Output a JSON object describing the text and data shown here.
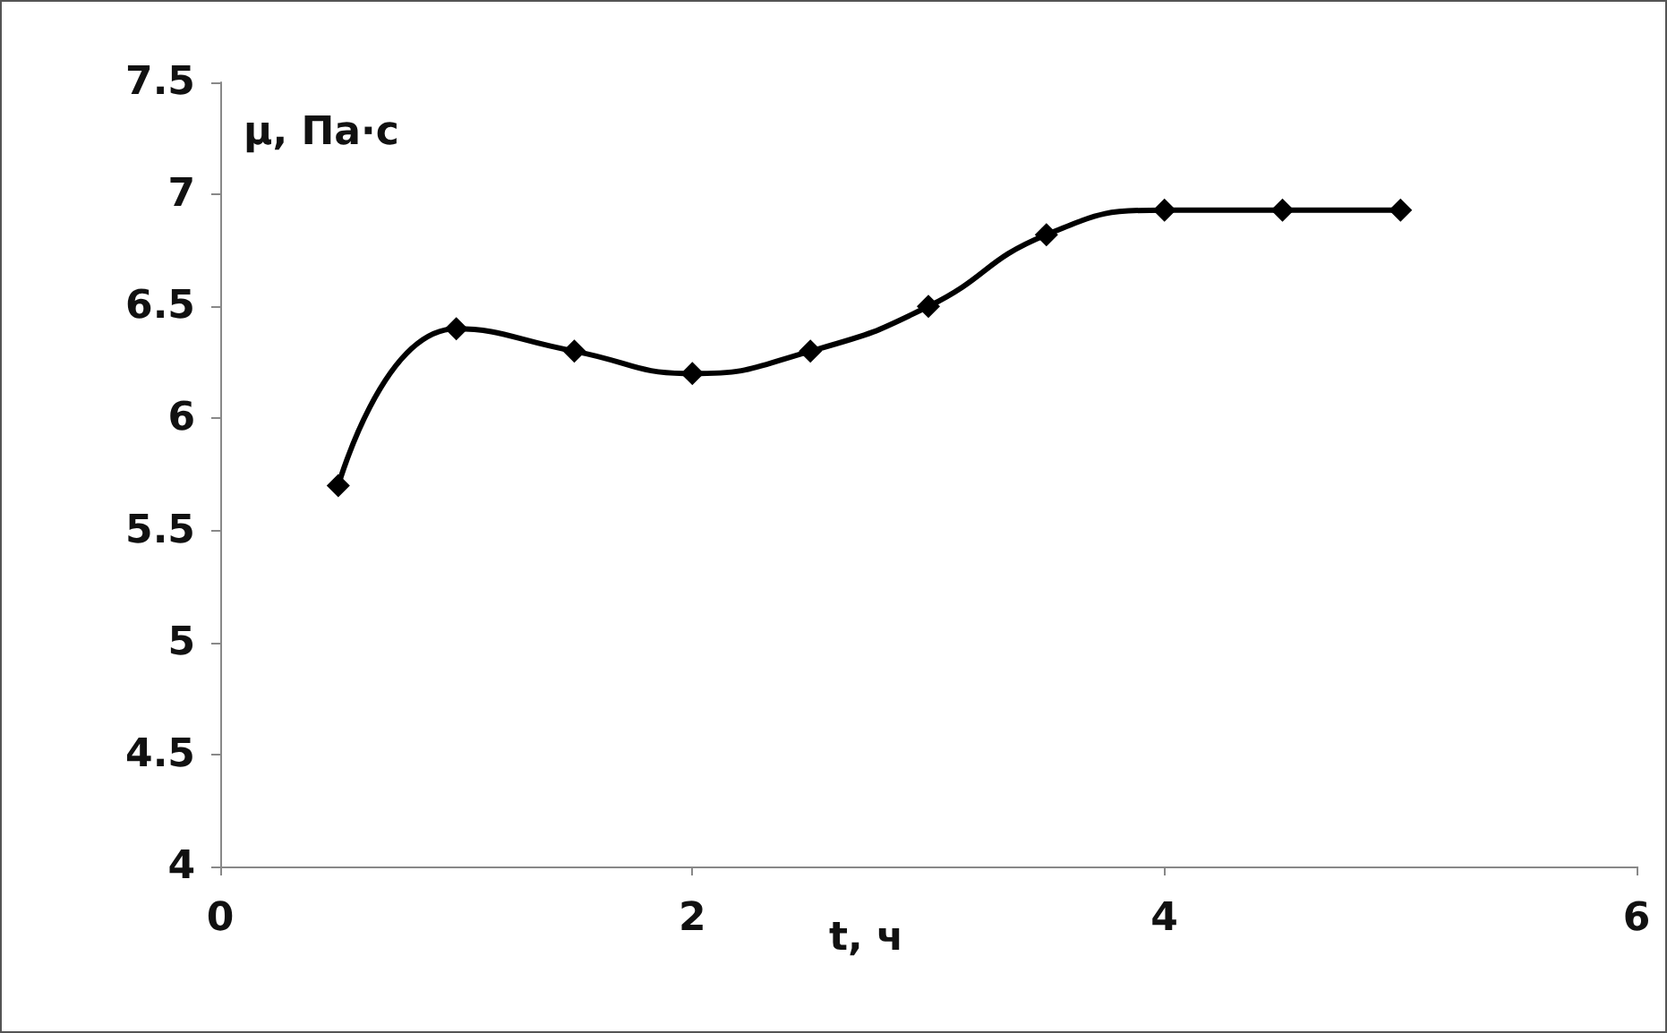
{
  "chart_data": {
    "type": "line",
    "xlabel": "t, ч",
    "ylabel": "μ, Па·с",
    "x": [
      0.5,
      1,
      1.5,
      2,
      2.5,
      3,
      3.5,
      4,
      4.5,
      5
    ],
    "series": [
      {
        "color": "#000000",
        "values": [
          5.7,
          6.4,
          6.3,
          6.2,
          6.3,
          6.5,
          6.82,
          6.93,
          6.93,
          6.93
        ]
      }
    ],
    "xlim": [
      0,
      6
    ],
    "xticks": [
      0,
      2,
      4,
      6
    ],
    "ylim": [
      4,
      7.5
    ],
    "yticks": [
      4,
      4.5,
      5,
      5.5,
      6,
      6.5,
      7,
      7.5
    ],
    "marker": "diamond",
    "line_style": "solid",
    "grid": false
  }
}
